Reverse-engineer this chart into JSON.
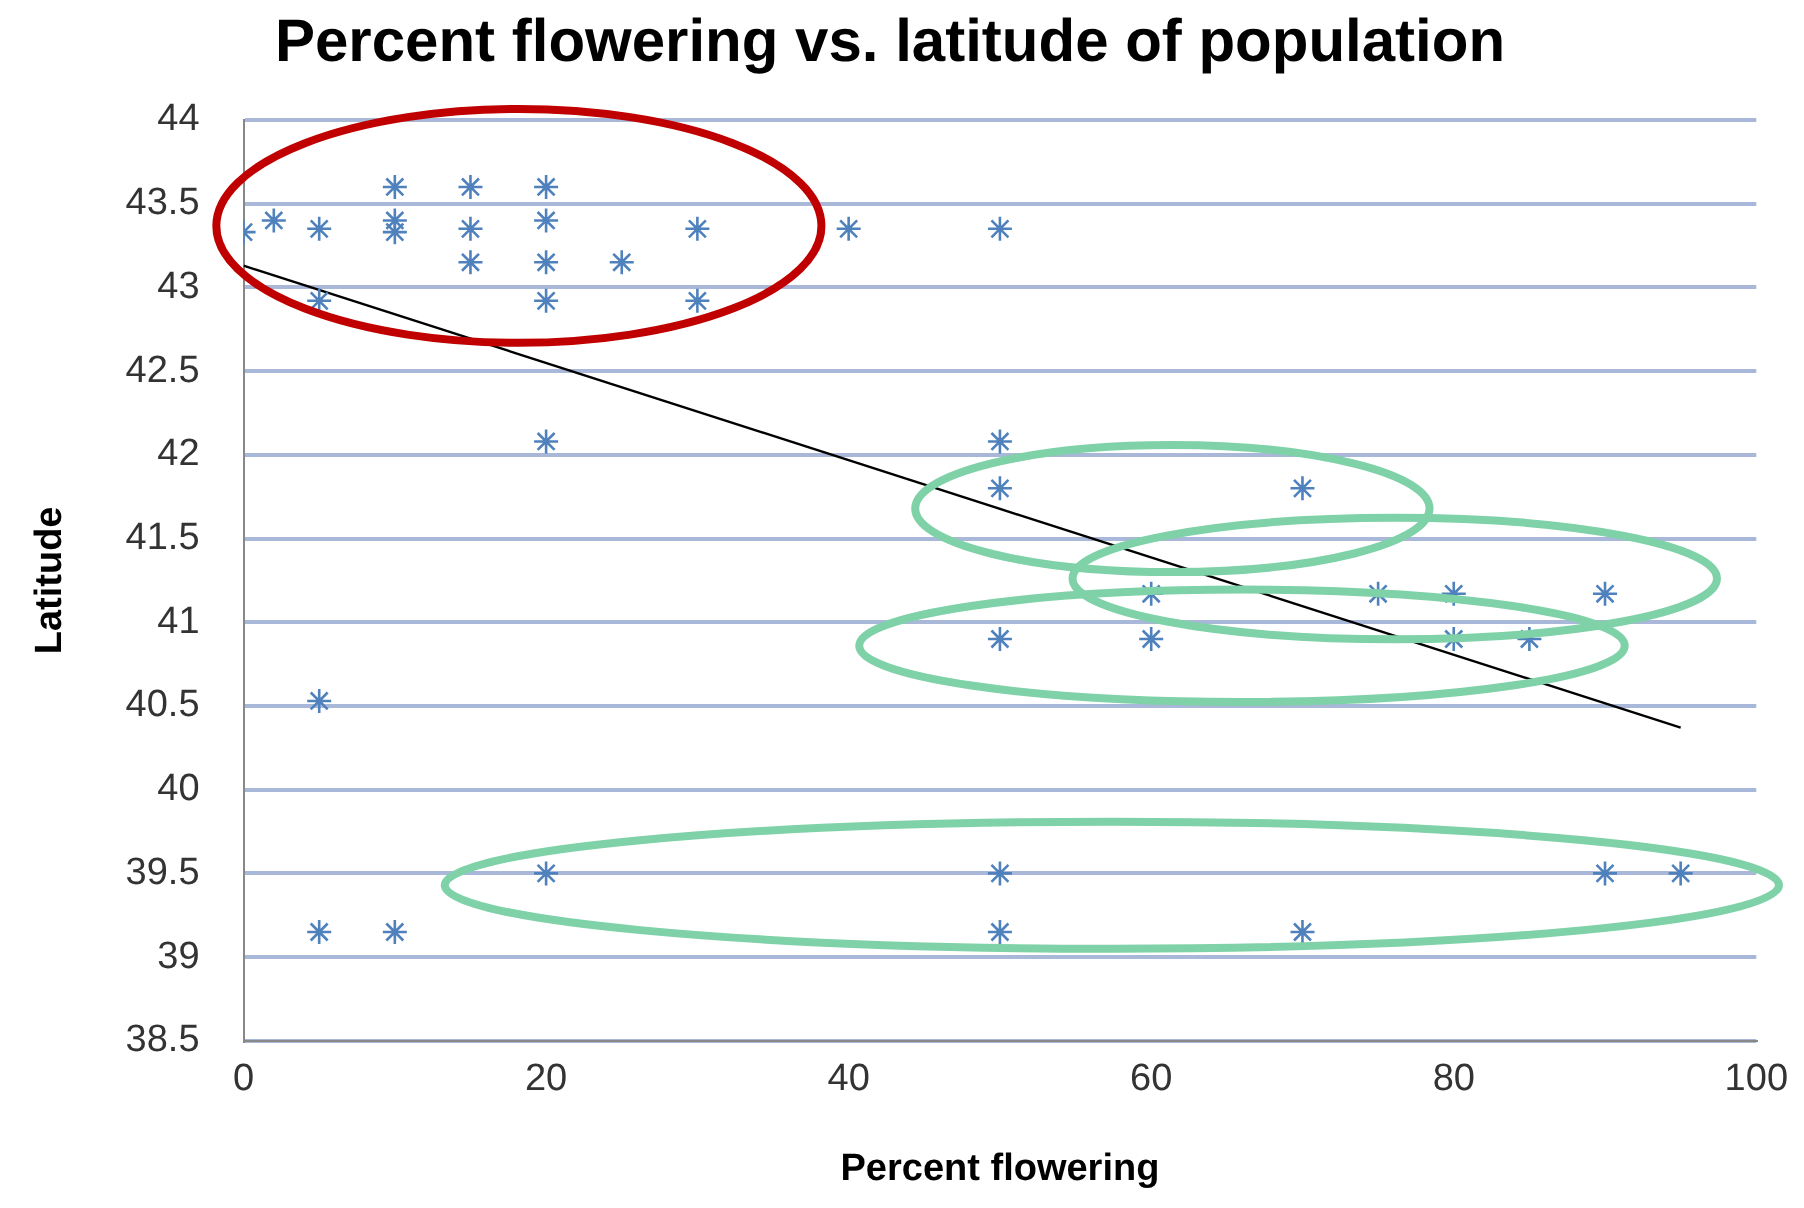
{
  "chart_data": {
    "type": "scatter",
    "title": "Percent flowering vs. latitude of population",
    "xlabel": "Percent flowering",
    "ylabel": "Latitude",
    "xlim": [
      0,
      100
    ],
    "xticks": [
      0,
      20,
      40,
      60,
      80,
      100
    ],
    "ylim": [
      38.5,
      44
    ],
    "yticks": [
      38.5,
      39,
      39.5,
      40,
      40.5,
      41,
      41.5,
      42,
      42.5,
      43,
      43.5,
      44
    ],
    "grid": "y",
    "legend": false,
    "marker": "cross",
    "series": [
      {
        "type": "scatter",
        "color": "#4f81bd",
        "x": [
          0,
          2,
          5,
          5,
          10,
          10,
          10,
          15,
          15,
          15,
          20,
          20,
          20,
          20,
          20,
          25,
          30,
          30,
          40,
          50,
          50,
          50,
          50,
          50,
          50,
          60,
          60,
          70,
          70,
          75,
          80,
          80,
          85,
          90,
          90,
          95,
          5,
          5,
          10,
          20
        ],
        "values": [
          43.33,
          43.4,
          43.35,
          42.92,
          43.6,
          43.4,
          43.33,
          43.6,
          43.35,
          43.15,
          43.6,
          43.4,
          43.15,
          42.92,
          42.08,
          43.15,
          43.35,
          42.92,
          43.35,
          43.35,
          42.08,
          41.8,
          40.9,
          39.5,
          39.15,
          41.17,
          40.9,
          41.8,
          39.15,
          41.17,
          41.17,
          40.9,
          40.9,
          41.17,
          39.5,
          39.5,
          40.53,
          39.15,
          39.15,
          39.5
        ]
      },
      {
        "type": "line",
        "color": "#000000",
        "marker": "none",
        "x": [
          0,
          95
        ],
        "values": [
          43.13,
          40.37
        ]
      }
    ]
  }
}
